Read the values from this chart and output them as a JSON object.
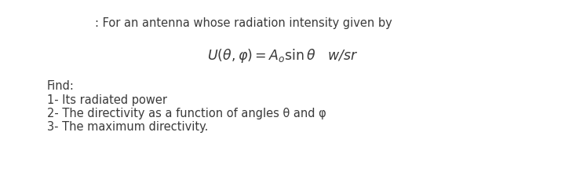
{
  "background_color": "#ffffff",
  "text_color": "#3a3a3a",
  "header_text": ": For an antenna whose radiation intensity given by",
  "formula_text": "$U(\\theta, \\varphi) = A_o \\sin\\theta$   w/sr",
  "find_label": "Find:",
  "item1": "1- Its radiated power",
  "item2": "2- The directivity as a function of angles θ and φ",
  "item3": "3- The maximum directivity.",
  "header_fontsize": 10.5,
  "formula_fontsize": 12.5,
  "body_fontsize": 10.5
}
